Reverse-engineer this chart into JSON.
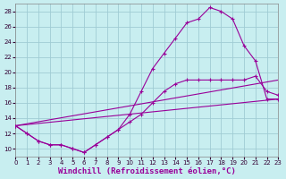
{
  "background_color": "#c8eef0",
  "line_color": "#990099",
  "grid_color": "#a0ccd4",
  "xlabel": "Windchill (Refroidissement éolien,°C)",
  "xlabel_fontsize": 6.5,
  "xlim": [
    0,
    23
  ],
  "ylim": [
    9,
    29
  ],
  "yticks": [
    10,
    12,
    14,
    16,
    18,
    20,
    22,
    24,
    26,
    28
  ],
  "xticks": [
    0,
    1,
    2,
    3,
    4,
    5,
    6,
    7,
    8,
    9,
    10,
    11,
    12,
    13,
    14,
    15,
    16,
    17,
    18,
    19,
    20,
    21,
    22,
    23
  ],
  "curve1_x": [
    0,
    1,
    2,
    3,
    4,
    5,
    6,
    7,
    8,
    9,
    10,
    11,
    12,
    13,
    14,
    15,
    16,
    17,
    18,
    19,
    20,
    21,
    22,
    23
  ],
  "curve1_y": [
    13.0,
    12.0,
    11.0,
    10.5,
    10.5,
    10.0,
    9.5,
    10.5,
    11.5,
    12.5,
    14.5,
    17.5,
    20.5,
    22.5,
    24.5,
    26.5,
    27.0,
    28.5,
    28.0,
    27.0,
    23.5,
    21.5,
    16.5,
    16.5
  ],
  "curve2_x": [
    0,
    1,
    2,
    3,
    4,
    5,
    6,
    7,
    8,
    9,
    10,
    11,
    12,
    13,
    14,
    15,
    16,
    17,
    18,
    19,
    20,
    21,
    22,
    23
  ],
  "curve2_y": [
    13.0,
    12.0,
    11.0,
    10.5,
    10.5,
    10.0,
    9.5,
    10.5,
    11.5,
    12.5,
    13.5,
    14.5,
    16.0,
    17.5,
    18.5,
    19.0,
    19.0,
    19.0,
    19.0,
    19.0,
    19.0,
    19.5,
    17.5,
    17.0
  ],
  "line1_x": [
    0,
    23
  ],
  "line1_y": [
    13.0,
    16.5
  ],
  "line2_x": [
    0,
    23
  ],
  "line2_y": [
    13.0,
    19.0
  ]
}
